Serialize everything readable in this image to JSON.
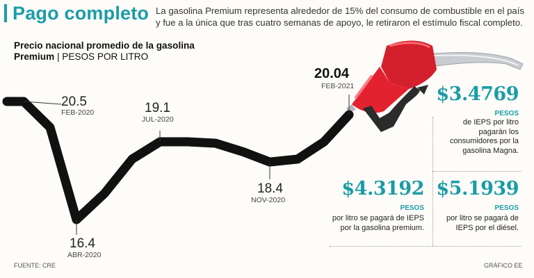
{
  "header": {
    "title": "Pago completo",
    "intro": "La gasolina Premium representa alrededor de 15% del consumo de combustible en el país y fue a la única que tras cuatro semanas de apoyo, le retiraron el estímulo fiscal completo."
  },
  "chart_data": {
    "type": "line",
    "title": "Precio nacional promedio de la gasolina",
    "subtitle_bold": "Premium",
    "subtitle_unit": "| PESOS POR LITRO",
    "series": [
      {
        "name": "",
        "color": "#111111",
        "points": [
          {
            "x": "2019-12",
            "y": 20.5
          },
          {
            "x": "FEB-2020",
            "y": 20.5
          },
          {
            "x": "2020-03",
            "y": 19.6
          },
          {
            "x": "ABR-2020",
            "y": 16.4
          },
          {
            "x": "2020-05",
            "y": 17.3
          },
          {
            "x": "2020-06",
            "y": 18.5
          },
          {
            "x": "JUL-2020",
            "y": 19.1
          },
          {
            "x": "2020-08",
            "y": 19.1
          },
          {
            "x": "2020-09",
            "y": 19.05
          },
          {
            "x": "2020-10",
            "y": 18.75
          },
          {
            "x": "NOV-2020",
            "y": 18.4
          },
          {
            "x": "2020-12",
            "y": 18.5
          },
          {
            "x": "2021-01",
            "y": 19.1
          },
          {
            "x": "FEB-2021",
            "y": 20.04
          }
        ]
      }
    ],
    "labels": [
      {
        "value": "20.5",
        "date": "FEB-2020"
      },
      {
        "value": "16.4",
        "date": "ABR-2020"
      },
      {
        "value": "19.1",
        "date": "JUL-2020"
      },
      {
        "value": "18.4",
        "date": "NOV-2020"
      },
      {
        "value": "20.04",
        "date": "FEB-2021"
      }
    ],
    "ylim": [
      16.0,
      21.0
    ]
  },
  "callouts": [
    {
      "amount": "$3.4769",
      "unit": "PESOS",
      "desc": "de IEPS por litro pagarán los consumidores por la gasolina Magna."
    },
    {
      "amount": "$4.3192",
      "unit": "PESOS",
      "desc": "por litro se pagará de IEPS por la gasolina premium."
    },
    {
      "amount": "$5.1939",
      "unit": "PESOS",
      "desc": "por litro se pagará de IEPS por el diésel."
    }
  ],
  "footer": {
    "source": "FUENTE: CRE",
    "credit": "GRÁFICO EE"
  },
  "colors": {
    "accent": "#1b9ca8",
    "line": "#111111",
    "nozzle": "#e0202e"
  },
  "icons": {
    "nozzle": "fuel-nozzle-icon"
  }
}
